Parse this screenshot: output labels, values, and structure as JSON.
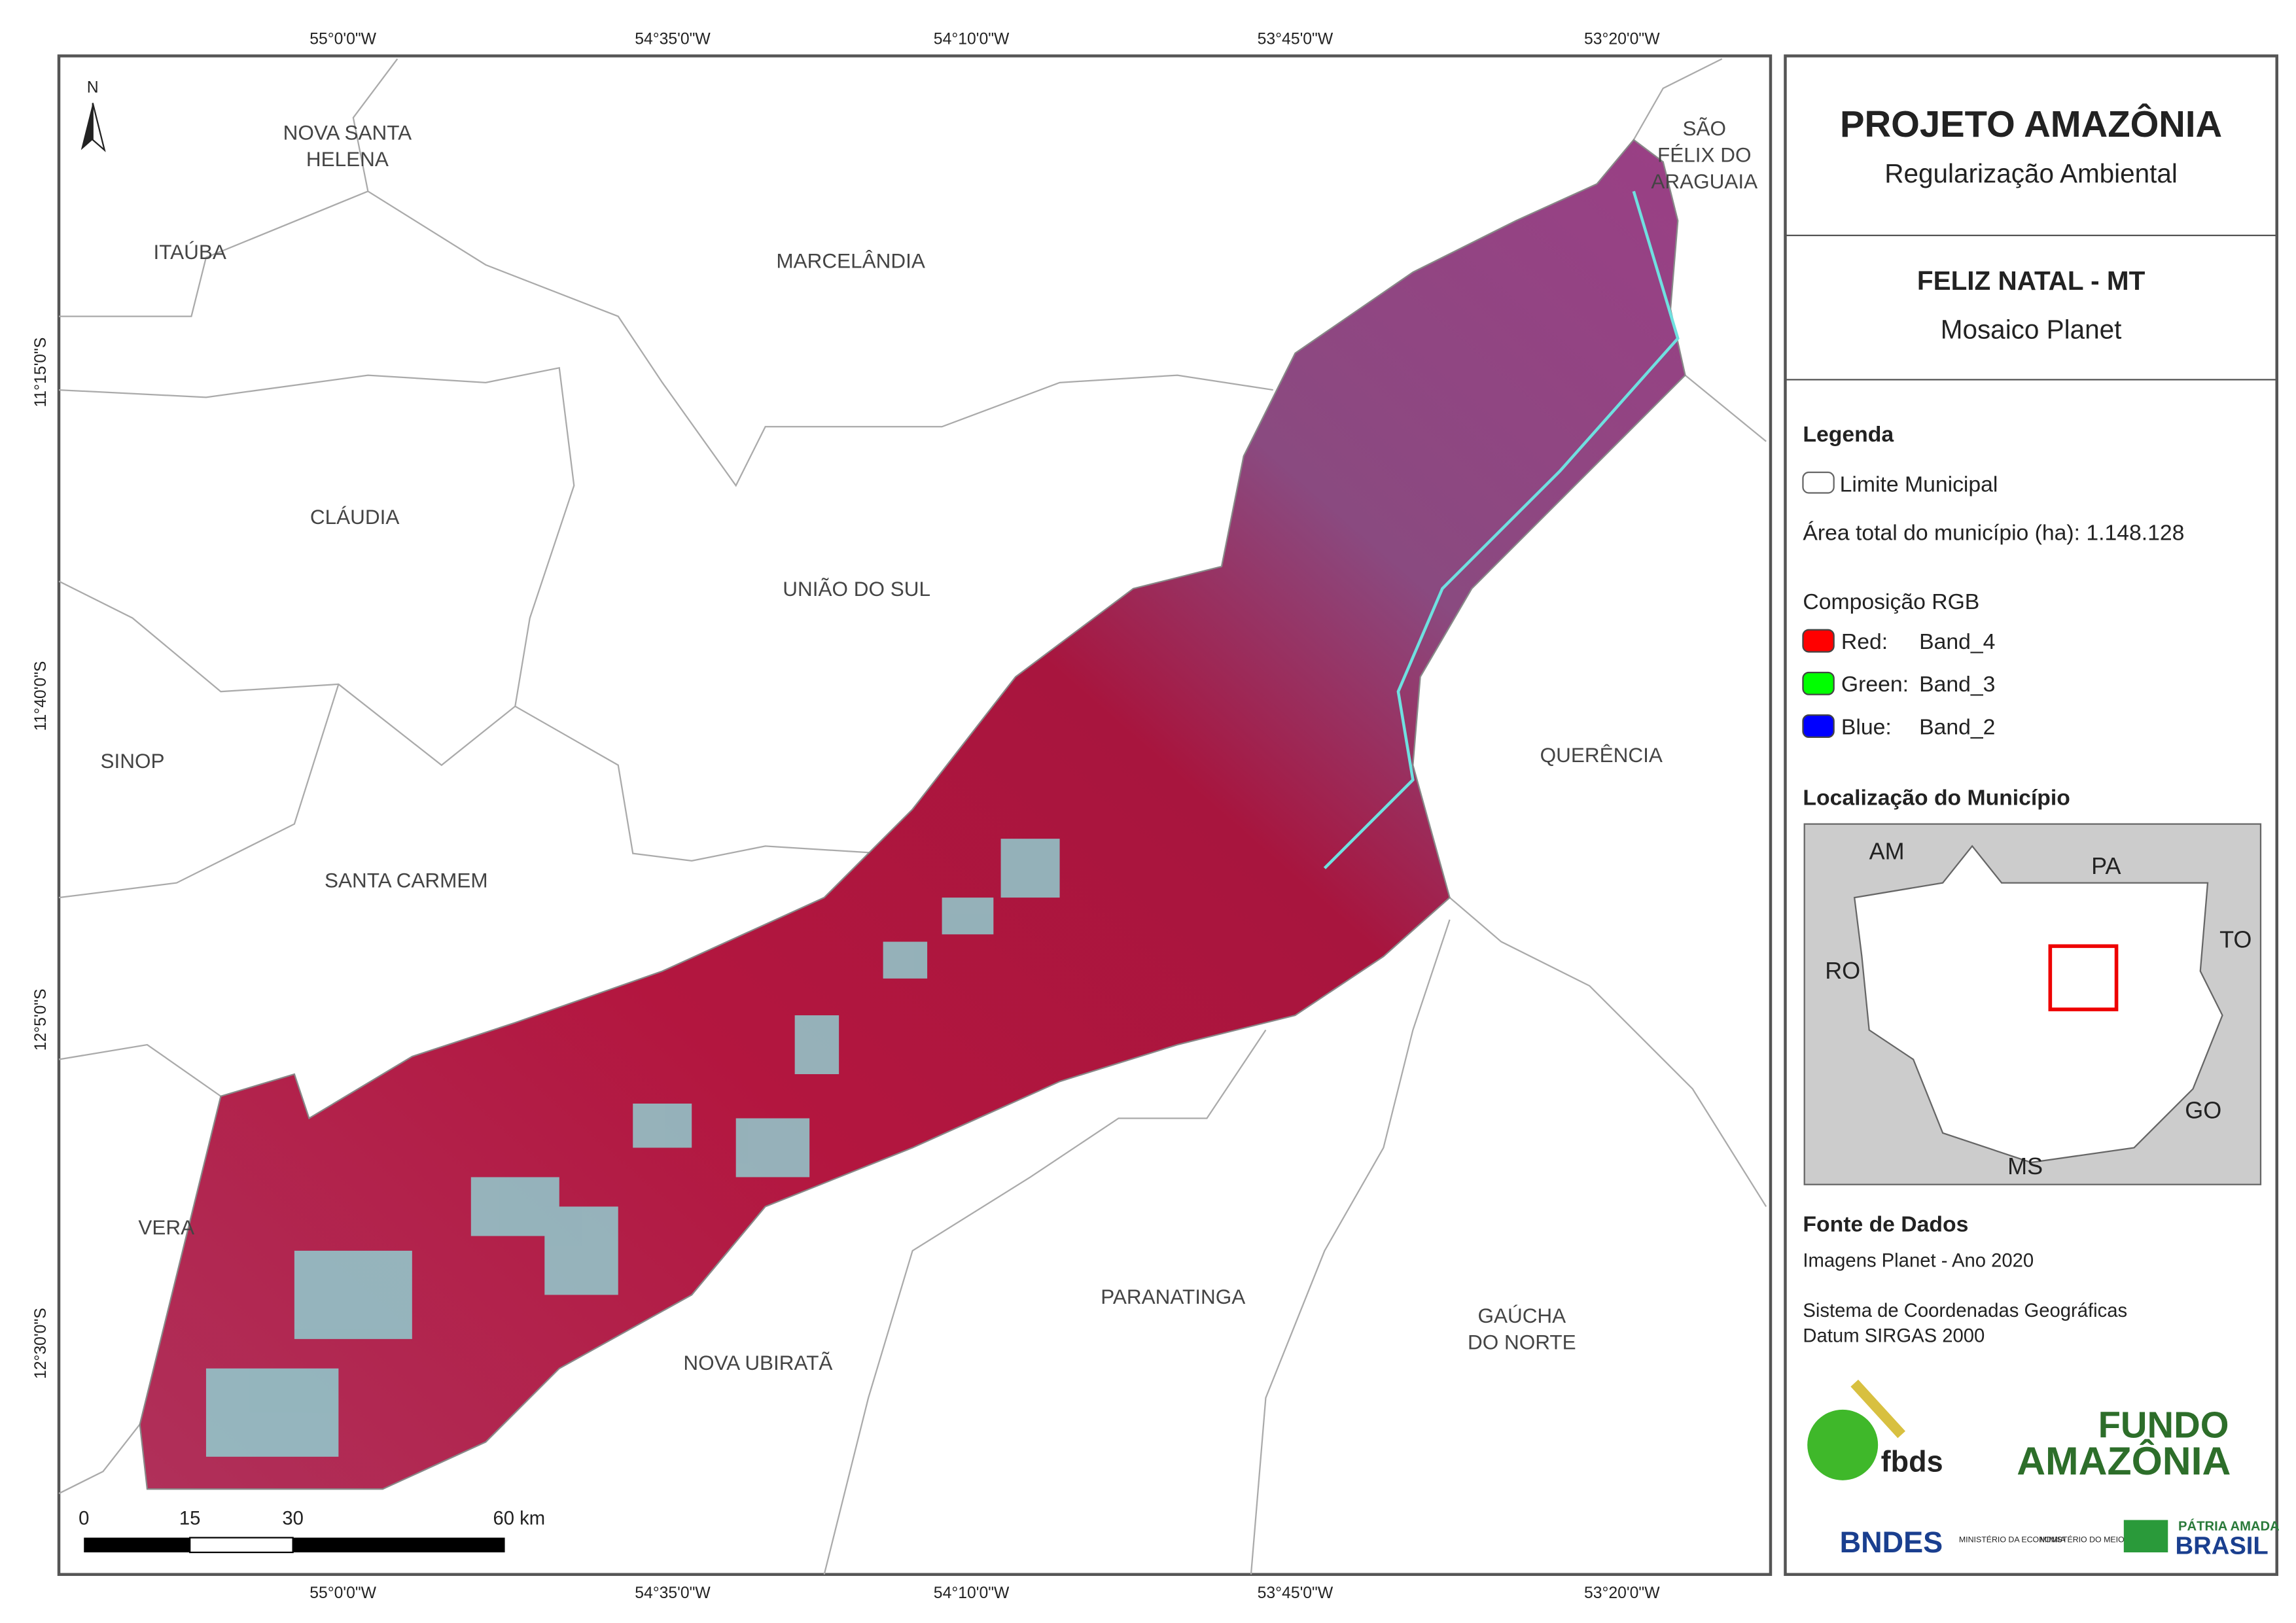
{
  "map": {
    "north_arrow": "N",
    "top_coords": [
      "55°0'0\"W",
      "54°35'0\"W",
      "54°10'0\"W",
      "53°45'0\"W",
      "53°20'0\"W"
    ],
    "bottom_coords": [
      "55°0'0\"W",
      "54°35'0\"W",
      "54°10'0\"W",
      "53°45'0\"W",
      "53°20'0\"W"
    ],
    "left_coords": [
      "11°15'0\"S",
      "11°40'0\"S",
      "12°5'0\"S",
      "12°30'0\"S"
    ],
    "place_labels": [
      [
        "NOVA SANTA",
        "HELENA"
      ],
      [
        "ITAÚBA"
      ],
      [
        "MARCELÂNDIA"
      ],
      [
        "SÃO",
        "FÉLIX DO",
        "ARAGUAIA"
      ],
      [
        "CLÁUDIA"
      ],
      [
        "UNIÃO DO SUL"
      ],
      [
        "SINOP"
      ],
      [
        "QUERÊNCIA"
      ],
      [
        "SANTA CARMEM"
      ],
      [
        "VERA"
      ],
      [
        "PARANATINGA"
      ],
      [
        "GAÚCHA",
        "DO NORTE"
      ],
      [
        "NOVA UBIRATÃ"
      ]
    ],
    "scale_bar": [
      "0",
      "15",
      "30",
      "60 km"
    ]
  },
  "panel": {
    "title": "PROJETO AMAZÔNIA",
    "subtitle": "Regularização Ambiental",
    "municipality": "FELIZ NATAL - MT",
    "product": "Mosaico Planet",
    "legend": {
      "title": "Legenda",
      "boundary": "Limite Municipal",
      "area_label": "Área total do município (ha): 1.148.128",
      "rgb_title": "Composição RGB",
      "bands": [
        {
          "channel": "Red:",
          "band": "Band_4"
        },
        {
          "channel": "Green:",
          "band": "Band_3"
        },
        {
          "channel": "Blue:",
          "band": "Band_2"
        }
      ]
    },
    "location": {
      "title": "Localização do Município",
      "states": [
        "AM",
        "PA",
        "RO",
        "TO",
        "GO",
        "MS"
      ]
    },
    "sources": {
      "title": "Fonte de Dados",
      "lines": [
        "Imagens Planet - Ano 2020",
        "Sistema de Coordenadas Geográficas",
        "Datum SIRGAS 2000"
      ]
    },
    "logos": [
      "fbds",
      "FUNDO",
      "AMAZÔNIA",
      "BNDES",
      "MINISTÉRIO DA ECONOMIA",
      "MINISTÉRIO DO MEIO AMBIENTE",
      "PÁTRIA AMADA",
      "BRASIL"
    ]
  }
}
